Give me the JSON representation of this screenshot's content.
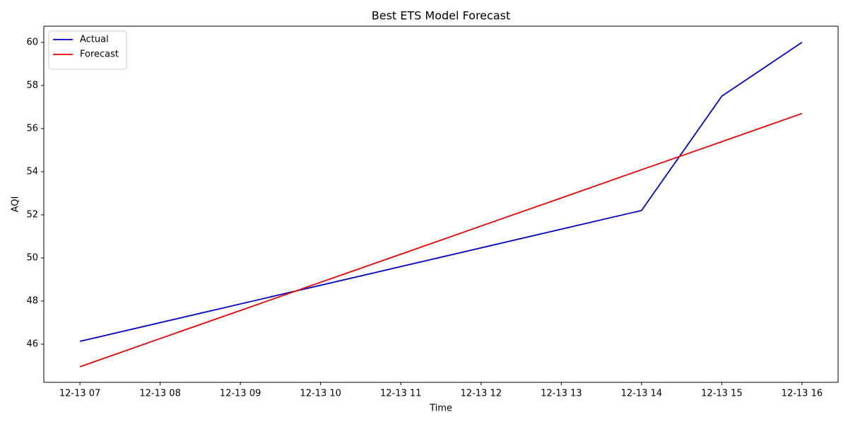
{
  "chart_data": {
    "type": "line",
    "title": "Best ETS Model Forecast",
    "xlabel": "Time",
    "ylabel": "AQI",
    "xticks": [
      "12-13 07",
      "12-13 08",
      "12-13 09",
      "12-13 10",
      "12-13 11",
      "12-13 12",
      "12-13 13",
      "12-13 14",
      "12-13 15",
      "12-13 16"
    ],
    "ylim": [
      44.23,
      60.75
    ],
    "yticks": [
      46,
      48,
      50,
      52,
      54,
      56,
      58,
      60
    ],
    "legend": "upper left",
    "series": [
      {
        "name": "Actual",
        "color": "#0000cc",
        "x": [
          "12-13 07",
          "12-13 14",
          "12-13 15",
          "12-13 16"
        ],
        "values": [
          46.13,
          52.2,
          57.5,
          60.0
        ]
      },
      {
        "name": "Forecast",
        "color": "#ee0000",
        "x": [
          "12-13 07",
          "12-13 08",
          "12-13 09",
          "12-13 10",
          "12-13 11",
          "12-13 12",
          "12-13 13",
          "12-13 14",
          "12-13 15",
          "12-13 16"
        ],
        "values": [
          44.95,
          46.26,
          47.56,
          48.87,
          50.17,
          51.48,
          52.78,
          54.09,
          55.39,
          56.7
        ]
      }
    ]
  }
}
